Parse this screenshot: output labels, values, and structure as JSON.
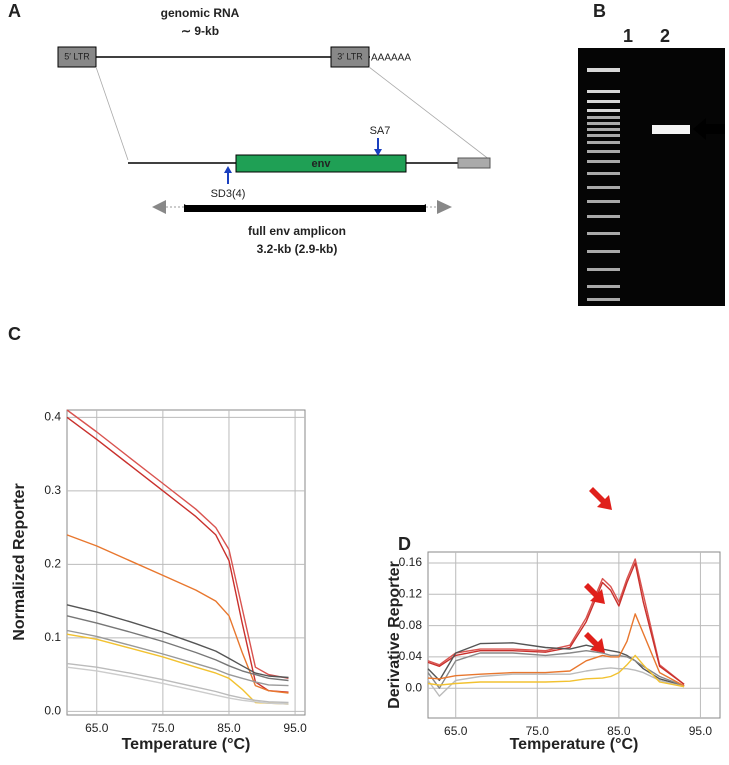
{
  "panel_a": {
    "label": "A",
    "genomic_rna": "genomic RNA",
    "size": "∼ 9-kb",
    "ltr5": "5′ LTR",
    "ltr3": "3′ LTR",
    "poly_a": "AAAAAA",
    "sa7": "SA7",
    "env": "env",
    "sd3": "SD3(4)",
    "amplicon": "full env amplicon",
    "amplicon_size": "3.2-kb (2.9-kb)"
  },
  "panel_b": {
    "label": "B",
    "lanes": [
      "1",
      "2"
    ]
  },
  "chart_data": [
    {
      "type": "line",
      "panel_label": "C",
      "x_label": "Temperature (°C)",
      "y_label": "Normalized Reporter",
      "x": [
        60.5,
        65,
        70,
        75,
        80,
        83,
        85,
        87,
        89,
        91,
        94
      ],
      "xlim": [
        60.5,
        96.5
      ],
      "ylim": [
        -0.005,
        0.41
      ],
      "grid": true,
      "xticks": [
        {
          "value": 65,
          "label": "65.0"
        },
        {
          "value": 75,
          "label": "75.0"
        },
        {
          "value": 85,
          "label": "85.0"
        },
        {
          "value": 95,
          "label": "95.0"
        }
      ],
      "yticks": [
        {
          "value": 0,
          "label": "0.0"
        },
        0.1,
        0.2,
        0.3,
        0.4
      ],
      "series": [
        {
          "color": "#d9534f",
          "values": [
            0.41,
            0.38,
            0.345,
            0.31,
            0.275,
            0.25,
            0.22,
            0.14,
            0.06,
            0.05,
            0.045
          ]
        },
        {
          "color": "#c9302c",
          "values": [
            0.4,
            0.37,
            0.335,
            0.3,
            0.265,
            0.24,
            0.205,
            0.12,
            0.04,
            0.028,
            0.026
          ]
        },
        {
          "color": "#e8772e",
          "values": [
            0.24,
            0.225,
            0.205,
            0.185,
            0.165,
            0.15,
            0.13,
            0.08,
            0.035,
            0.028,
            0.025
          ]
        },
        {
          "color": "#555555",
          "values": [
            0.145,
            0.135,
            0.122,
            0.108,
            0.092,
            0.082,
            0.072,
            0.062,
            0.052,
            0.048,
            0.046
          ]
        },
        {
          "color": "#777777",
          "values": [
            0.13,
            0.12,
            0.108,
            0.095,
            0.08,
            0.07,
            0.062,
            0.055,
            0.05,
            0.045,
            0.042
          ]
        },
        {
          "color": "#999999",
          "values": [
            0.11,
            0.102,
            0.09,
            0.078,
            0.065,
            0.057,
            0.05,
            0.045,
            0.04,
            0.036,
            0.035
          ]
        },
        {
          "color": "#f2c230",
          "values": [
            0.105,
            0.098,
            0.086,
            0.074,
            0.06,
            0.052,
            0.045,
            0.03,
            0.012,
            0.011,
            0.01
          ]
        },
        {
          "color": "#bbbbbb",
          "values": [
            0.065,
            0.06,
            0.052,
            0.043,
            0.033,
            0.027,
            0.022,
            0.018,
            0.015,
            0.013,
            0.012
          ]
        },
        {
          "color": "#cccccc",
          "values": [
            0.06,
            0.055,
            0.047,
            0.038,
            0.028,
            0.022,
            0.018,
            0.015,
            0.013,
            0.011,
            0.01
          ]
        }
      ]
    },
    {
      "type": "line",
      "panel_label": "D",
      "x_label": "Temperature (°C)",
      "y_label": "Derivative Reporter",
      "x": [
        61.6,
        63,
        65,
        68,
        72,
        76,
        79,
        81,
        83,
        84,
        85,
        86,
        87,
        88,
        90,
        93
      ],
      "xlim": [
        61.6,
        97.4
      ],
      "ylim": [
        -0.038,
        0.174
      ],
      "grid": true,
      "xticks": [
        {
          "value": 65,
          "label": "65.0"
        },
        {
          "value": 75,
          "label": "75.0"
        },
        {
          "value": 85,
          "label": "85.0"
        },
        {
          "value": 95,
          "label": "95.0"
        }
      ],
      "yticks": [
        {
          "value": 0,
          "label": "0.0"
        },
        0.04,
        0.08,
        0.12,
        0.16
      ],
      "series": [
        {
          "color": "#d9534f",
          "values": [
            0.035,
            0.03,
            0.045,
            0.05,
            0.05,
            0.048,
            0.055,
            0.09,
            0.14,
            0.13,
            0.11,
            0.14,
            0.165,
            0.12,
            0.03,
            0.005
          ]
        },
        {
          "color": "#c9302c",
          "values": [
            0.033,
            0.028,
            0.042,
            0.048,
            0.048,
            0.046,
            0.052,
            0.085,
            0.135,
            0.125,
            0.105,
            0.135,
            0.16,
            0.11,
            0.028,
            0.005
          ]
        },
        {
          "color": "#555555",
          "values": [
            0.025,
            0.01,
            0.045,
            0.057,
            0.058,
            0.052,
            0.05,
            0.055,
            0.05,
            0.048,
            0.046,
            0.042,
            0.035,
            0.025,
            0.012,
            0.003
          ]
        },
        {
          "color": "#888888",
          "values": [
            0.02,
            0,
            0.035,
            0.045,
            0.045,
            0.042,
            0.045,
            0.048,
            0.045,
            0.042,
            0.042,
            0.04,
            0.035,
            0.028,
            0.015,
            0.003
          ]
        },
        {
          "color": "#e8772e",
          "values": [
            0.013,
            0.012,
            0.016,
            0.018,
            0.02,
            0.02,
            0.022,
            0.035,
            0.042,
            0.04,
            0.04,
            0.06,
            0.095,
            0.07,
            0.02,
            0.003
          ]
        },
        {
          "color": "#bbbbbb",
          "values": [
            0.01,
            -0.01,
            0.01,
            0.015,
            0.018,
            0.018,
            0.018,
            0.022,
            0.025,
            0.026,
            0.025,
            0.025,
            0.023,
            0.02,
            0.01,
            0.002
          ]
        },
        {
          "color": "#f2c230",
          "values": [
            0.006,
            0.004,
            0.006,
            0.008,
            0.008,
            0.008,
            0.009,
            0.012,
            0.013,
            0.015,
            0.02,
            0.03,
            0.042,
            0.03,
            0.008,
            0.002
          ]
        }
      ]
    }
  ]
}
